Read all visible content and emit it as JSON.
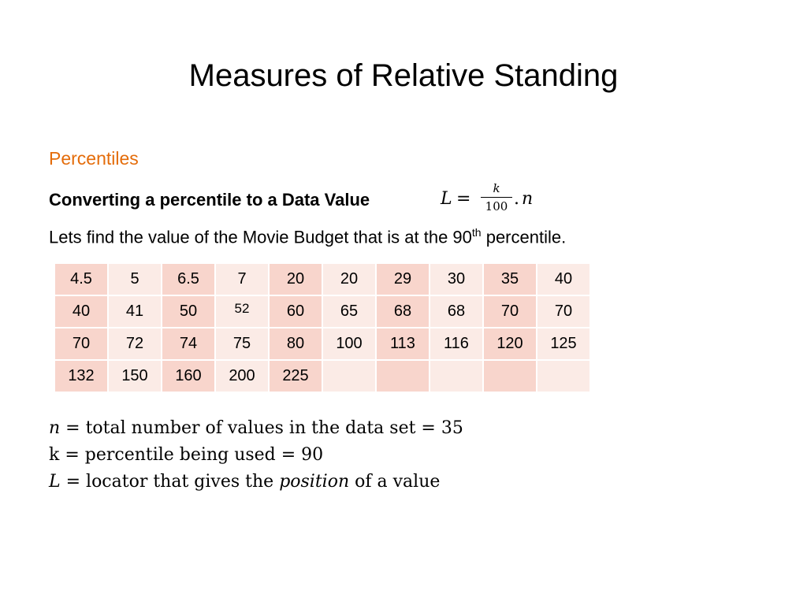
{
  "slide": {
    "title": "Measures of Relative Standing",
    "subheading": "Percentiles",
    "convert_label": "Converting a percentile to a Data Value",
    "formula": {
      "lhs": "L",
      "equals": "=",
      "numerator": "k",
      "denominator": "100",
      "dot": ".",
      "n": "n"
    },
    "intro": {
      "before": "Lets find the value of the Movie Budget that is at the 90",
      "sup": "th",
      "after": " percentile."
    },
    "table": {
      "rows": [
        [
          "4.5",
          "5",
          "6.5",
          "7",
          "20",
          "20",
          "29",
          "30",
          "35",
          "40"
        ],
        [
          "40",
          "41",
          "50",
          "52",
          "60",
          "65",
          "68",
          "68",
          "70",
          "70"
        ],
        [
          "70",
          "72",
          "74",
          "75",
          "80",
          "100",
          "113",
          "116",
          "120",
          "125"
        ],
        [
          "132",
          "150",
          "160",
          "200",
          "225",
          "",
          "",
          "",
          "",
          ""
        ]
      ]
    },
    "definitions": {
      "n_var": "n",
      "n_text": " = total number of values in the data set = 35",
      "k_text": "k = percentile being used = 90",
      "l_var": "L",
      "l_text_before": " = locator that gives the ",
      "l_italic": "position",
      "l_text_after": " of a value"
    }
  }
}
